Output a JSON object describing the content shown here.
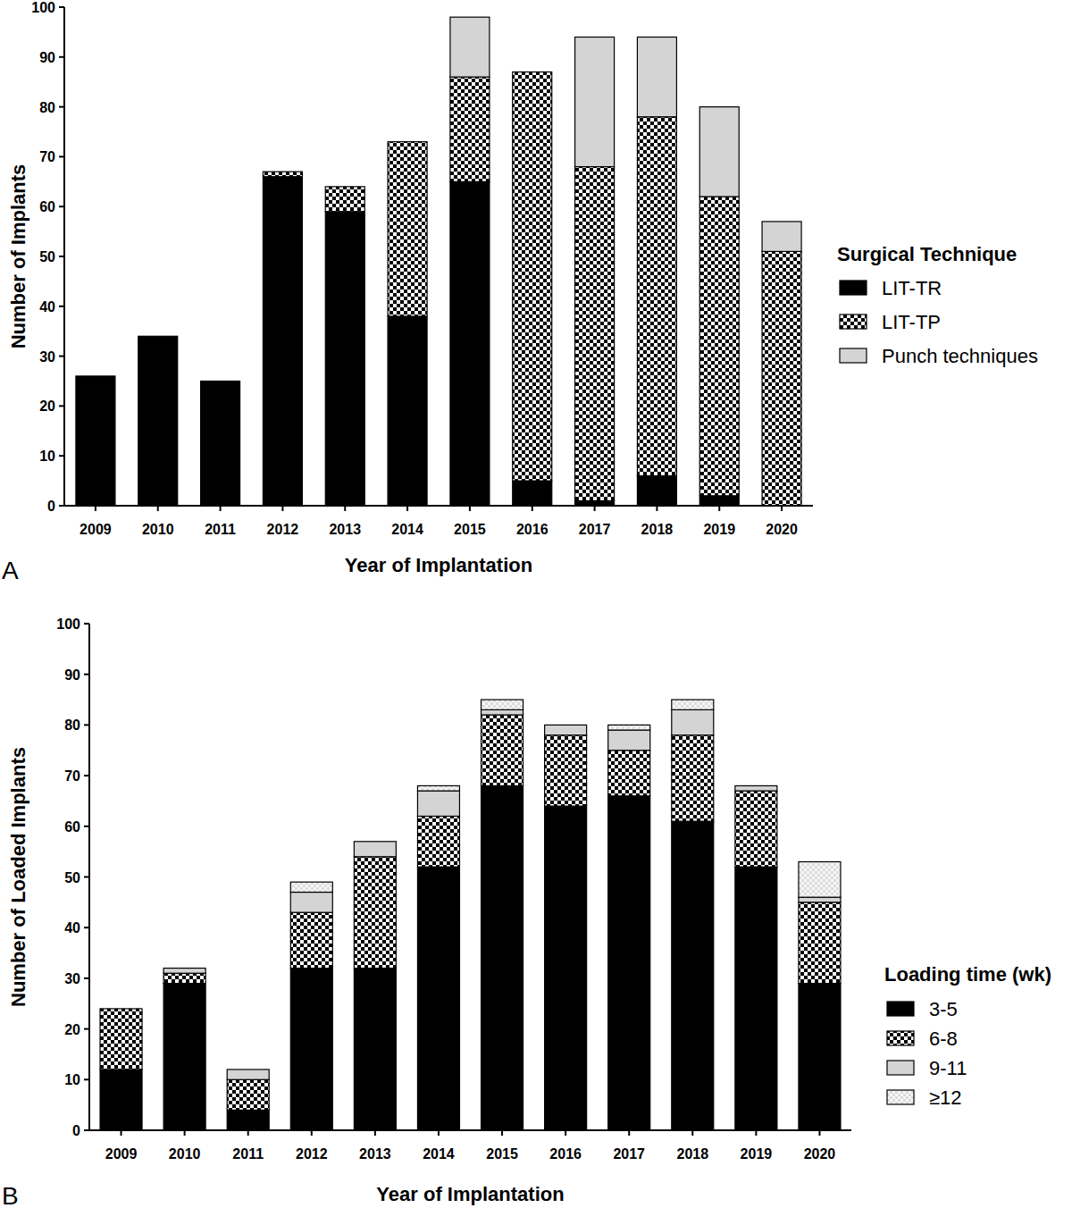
{
  "chart_data": [
    {
      "type": "bar",
      "stacked": true,
      "panel_label": "A",
      "xlabel": "Year of Implantation",
      "ylabel": "Number of Implants",
      "legend_title": "Surgical Technique",
      "legend": "right",
      "categories": [
        "2009",
        "2010",
        "2011",
        "2012",
        "2013",
        "2014",
        "2015",
        "2016",
        "2017",
        "2018",
        "2019",
        "2020"
      ],
      "ylim": [
        0,
        100
      ],
      "yticks": [
        0,
        10,
        20,
        30,
        40,
        50,
        60,
        70,
        80,
        90,
        100
      ],
      "series": [
        {
          "name": "LIT-TR",
          "color": "#000000",
          "values": [
            26,
            34,
            25,
            66,
            59,
            38,
            65,
            5,
            1,
            6,
            2,
            0
          ]
        },
        {
          "name": "LIT-TP",
          "color": "#000000",
          "marker": "checker",
          "values": [
            0,
            0,
            0,
            1,
            5,
            35,
            21,
            82,
            67,
            72,
            60,
            51
          ]
        },
        {
          "name": "Punch techniques",
          "color": "#d4d4d4",
          "values": [
            0,
            0,
            0,
            0,
            0,
            0,
            12,
            0,
            26,
            16,
            18,
            6
          ]
        }
      ]
    },
    {
      "type": "bar",
      "stacked": true,
      "panel_label": "B",
      "xlabel": "Year of Implantation",
      "ylabel": "Number of Loaded Implants",
      "legend_title": "Loading time (wk)",
      "legend": "right",
      "categories": [
        "2009",
        "2010",
        "2011",
        "2012",
        "2013",
        "2014",
        "2015",
        "2016",
        "2017",
        "2018",
        "2019",
        "2020"
      ],
      "ylim": [
        0,
        100
      ],
      "yticks": [
        0,
        10,
        20,
        30,
        40,
        50,
        60,
        70,
        80,
        90,
        100
      ],
      "series": [
        {
          "name": "3-5",
          "color": "#000000",
          "values": [
            12,
            29,
            4,
            32,
            32,
            52,
            68,
            64,
            66,
            61,
            52,
            29
          ]
        },
        {
          "name": "6-8",
          "color": "#000000",
          "marker": "checker",
          "values": [
            12,
            2,
            6,
            11,
            22,
            10,
            14,
            14,
            9,
            17,
            15,
            16
          ]
        },
        {
          "name": "9-11",
          "color": "#d4d4d4",
          "values": [
            0,
            1,
            2,
            4,
            3,
            5,
            1,
            2,
            4,
            5,
            1,
            1
          ]
        },
        {
          "name": "≥12",
          "color": "#dcdcdc",
          "marker": "dots",
          "values": [
            0,
            0,
            0,
            2,
            0,
            1,
            2,
            0,
            1,
            2,
            0,
            7
          ]
        }
      ]
    }
  ]
}
